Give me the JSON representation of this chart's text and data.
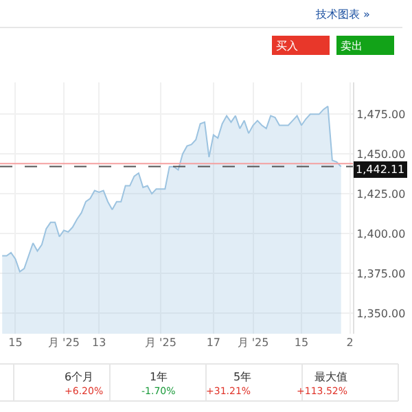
{
  "chart_data": {
    "type": "area",
    "tick_labels": "xy",
    "grid": true,
    "color": "#9cc3e0",
    "categories": [
      null,
      null,
      null,
      "15",
      null,
      null,
      null,
      null,
      null,
      null,
      null,
      null,
      null,
      null,
      "月 '25",
      null,
      null,
      null,
      null,
      null,
      null,
      null,
      "13",
      null,
      null,
      null,
      null,
      null,
      null,
      null,
      null,
      null,
      null,
      null,
      null,
      null,
      "月 '25",
      null,
      null,
      null,
      null,
      null,
      null,
      null,
      null,
      null,
      null,
      null,
      "17",
      null,
      null,
      null,
      null,
      null,
      null,
      null,
      null,
      "月 '25",
      null,
      null,
      null,
      null,
      null,
      null,
      null,
      null,
      null,
      null,
      "15",
      null,
      null,
      null,
      null,
      null,
      null,
      null,
      null,
      null,
      null,
      "2"
    ],
    "values": [
      1386,
      1386,
      1388,
      1384,
      1376,
      1378,
      1386,
      1394,
      1389,
      1393,
      1403,
      1407,
      1407,
      1398,
      1402,
      1401,
      1404,
      1409,
      1413,
      1420,
      1422,
      1427,
      1426,
      1427,
      1420,
      1415,
      1420,
      1420,
      1430,
      1430,
      1436,
      1438,
      1429,
      1430,
      1425,
      1428,
      1428,
      1428,
      1442,
      1442,
      1440,
      1450,
      1455,
      1456,
      1459,
      1469,
      1470,
      1448,
      1462,
      1460,
      1469,
      1474,
      1470,
      1474,
      1466,
      1471,
      1463,
      1468,
      1471,
      1468,
      1466,
      1474,
      1473,
      1468,
      1468,
      1468,
      1471,
      1474,
      1468,
      1472,
      1475,
      1475,
      1475,
      1478,
      1480,
      1446,
      1445,
      1442,
      null,
      null
    ],
    "ylim": [
      1337,
      1495
    ],
    "yticks": [
      {
        "value": 1350,
        "label": "1,350.00"
      },
      {
        "value": 1375,
        "label": "1,375.00"
      },
      {
        "value": 1400,
        "label": "1,400.00"
      },
      {
        "value": 1425,
        "label": "1,425.00"
      },
      {
        "value": 1450,
        "label": "1,450.00"
      },
      {
        "value": 1475,
        "label": "1,475.00"
      }
    ],
    "ref_lines": [
      {
        "axis": "y",
        "value": 1444,
        "color": "#f4a0a0",
        "line_style": "solid"
      },
      {
        "axis": "y",
        "value": 1442.11,
        "label": "1,442.11",
        "color": "#555555",
        "line_style": "dashed"
      }
    ],
    "annotations": [
      "技术图表 »",
      "买入",
      "卖出",
      "6个月",
      "+6.20%",
      "1年",
      "-1.70%",
      "5年",
      "+31.21%",
      "最大值",
      "+113.52%"
    ]
  }
}
